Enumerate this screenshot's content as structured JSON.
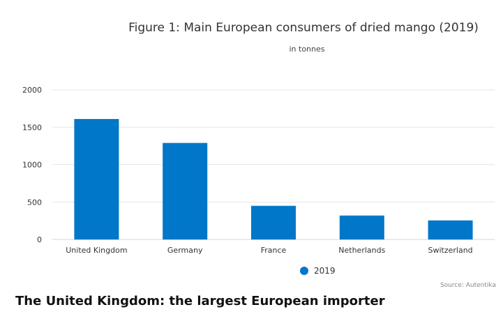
{
  "chart_data": {
    "type": "bar",
    "title": "Figure 1: Main European consumers of dried mango (2019)",
    "subtitle": "in tonnes",
    "categories": [
      "United Kingdom",
      "Germany",
      "France",
      "Netherlands",
      "Switzerland"
    ],
    "series": [
      {
        "name": "2019",
        "color": "#0077c8",
        "values": [
          1610,
          1290,
          450,
          320,
          255
        ]
      }
    ],
    "ylim": [
      0,
      2000
    ],
    "yticks": [
      0,
      500,
      1000,
      1500,
      2000
    ],
    "grid": true,
    "legend_position": "bottom"
  },
  "source": "Source: Autentika",
  "caption": "The United Kingdom: the largest European importer"
}
